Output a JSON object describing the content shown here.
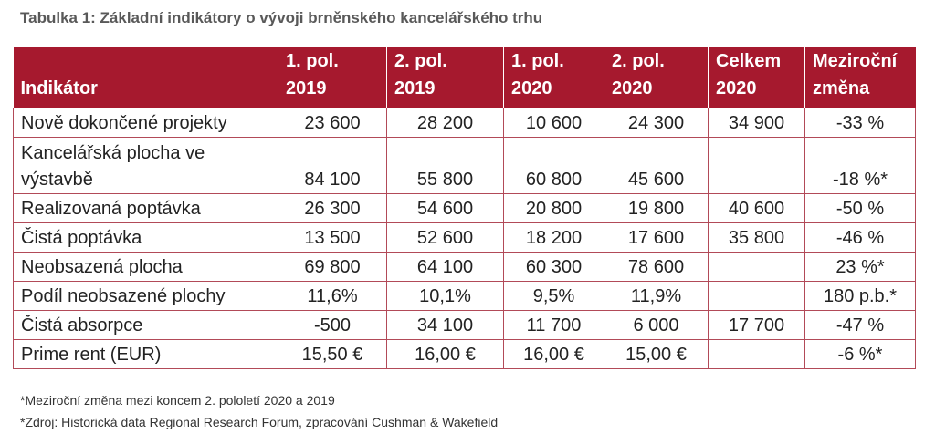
{
  "title": "Tabulka 1: Základní indikátory o vývoji brněnského kancelářského trhu",
  "table": {
    "headers": [
      {
        "l1": "",
        "l2": "Indikátor"
      },
      {
        "l1": "1. pol.",
        "l2": "2019"
      },
      {
        "l1": "2. pol.",
        "l2": "2019"
      },
      {
        "l1": "1. pol.",
        "l2": "2020"
      },
      {
        "l1": "2. pol.",
        "l2": "2020"
      },
      {
        "l1": "Celkem",
        "l2": "2020"
      },
      {
        "l1": "Meziroční",
        "l2": "změna"
      }
    ],
    "rows": [
      [
        "Nově dokončené projekty",
        "23 600",
        "28 200",
        "10 600",
        "24 300",
        "34 900",
        "-33 %"
      ],
      [
        "Kancelářská plocha ve výstavbě",
        "84 100",
        "55 800",
        "60 800",
        "45 600",
        "",
        "-18 %*"
      ],
      [
        "Realizovaná poptávka",
        "26 300",
        "54 600",
        "20 800",
        "19 800",
        "40 600",
        "-50 %"
      ],
      [
        "Čistá poptávka",
        "13 500",
        "52 600",
        "18 200",
        "17 600",
        "35 800",
        "-46 %"
      ],
      [
        "Neobsazená plocha",
        "69 800",
        "64 100",
        "60 300",
        "78 600",
        "",
        "23 %*"
      ],
      [
        "Podíl neobsazené plochy",
        "11,6%",
        "10,1%",
        "9,5%",
        "11,9%",
        "",
        "180 p.b.*"
      ],
      [
        "Čistá absorpce",
        "-500",
        "34 100",
        "11 700",
        "6 000",
        "17 700",
        "-47 %"
      ],
      [
        "Prime rent (EUR)",
        "15,50 €",
        "16,00 €",
        "16,00 €",
        "15,00 €",
        "",
        "-6 %*"
      ]
    ]
  },
  "footnotes": [
    "*Meziroční změna mezi koncem 2. pololetí 2020 a 2019",
    "*Zdroj: Historická data Regional Research Forum, zpracování Cushman & Wakefield"
  ]
}
